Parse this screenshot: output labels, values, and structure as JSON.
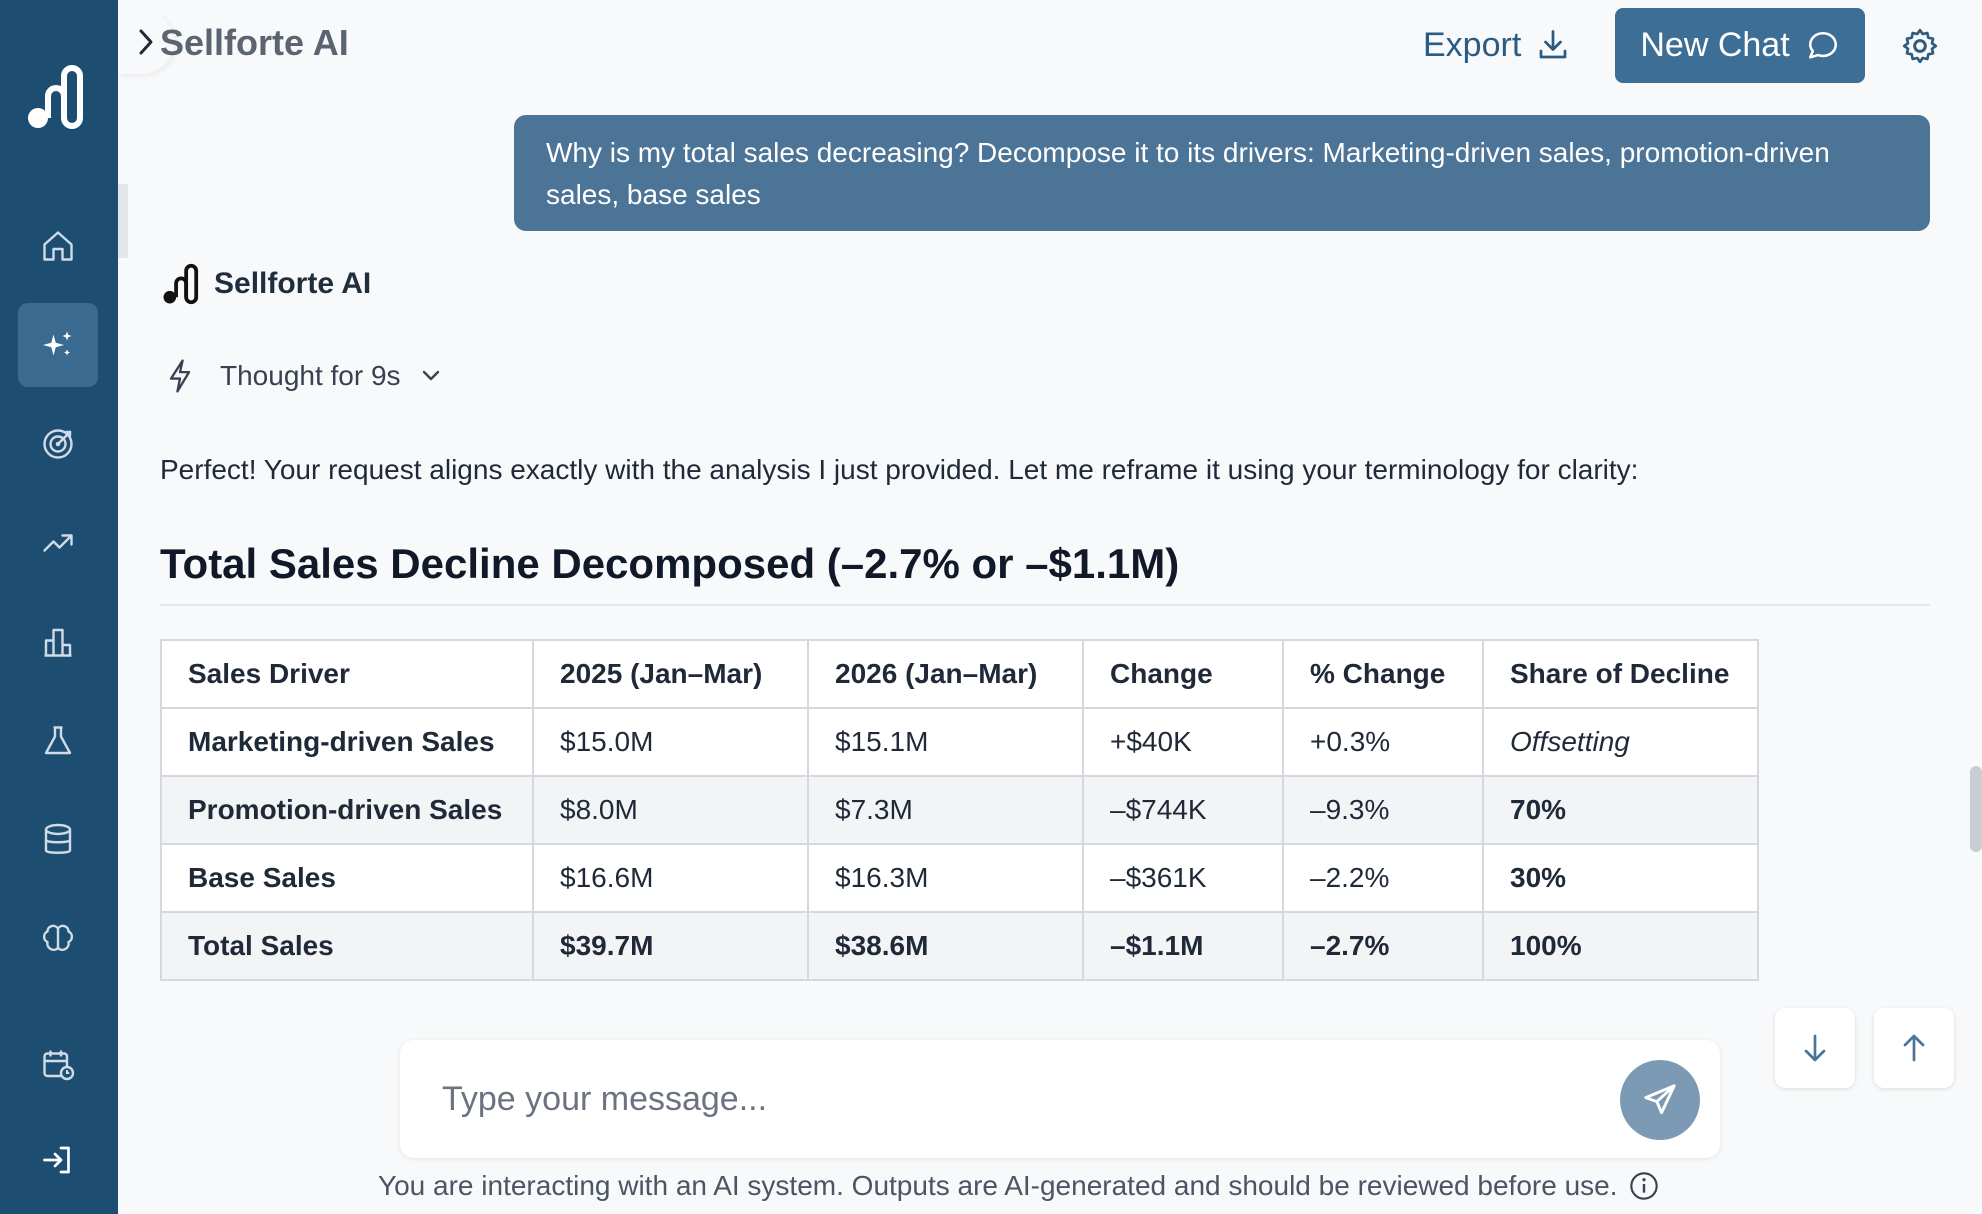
{
  "app": {
    "title": "Sellforte AI"
  },
  "header": {
    "export_label": "Export",
    "new_chat_label": "New Chat"
  },
  "sidebar": {
    "items": [
      {
        "icon": "home-icon"
      },
      {
        "icon": "sparkles-icon",
        "active": true
      },
      {
        "icon": "target-icon"
      },
      {
        "icon": "trend-up-icon"
      },
      {
        "icon": "bar-chart-icon"
      },
      {
        "icon": "flask-icon"
      },
      {
        "icon": "database-icon"
      },
      {
        "icon": "brain-icon"
      },
      {
        "icon": "calendar-clock-icon"
      },
      {
        "icon": "logout-icon"
      }
    ]
  },
  "conversation": {
    "user_message": "Why is my total sales decreasing? Decompose it to its drivers: Marketing-driven sales, promotion-driven sales, base sales",
    "assistant_name": "Sellforte AI",
    "thought_label": "Thought for 9s",
    "intro": "Perfect! Your request aligns exactly with the analysis I just provided. Let me reframe it using your terminology for clarity:",
    "section_title": "Total Sales Decline Decomposed (–2.7% or –$1.1M)",
    "table": {
      "headers": [
        "Sales Driver",
        "2025 (Jan–Mar)",
        "2026 (Jan–Mar)",
        "Change",
        "% Change",
        "Share of Decline"
      ],
      "rows": [
        [
          "Marketing-driven Sales",
          "$15.0M",
          "$15.1M",
          "+$40K",
          "+0.3%",
          "Offsetting"
        ],
        [
          "Promotion-driven Sales",
          "$8.0M",
          "$7.3M",
          "–$744K",
          "–9.3%",
          "70%"
        ],
        [
          "Base Sales",
          "$16.6M",
          "$16.3M",
          "–$361K",
          "–2.2%",
          "30%"
        ],
        [
          "Total Sales",
          "$39.7M",
          "$38.6M",
          "–$1.1M",
          "–2.7%",
          "100%"
        ]
      ]
    }
  },
  "composer": {
    "placeholder": "Type your message..."
  },
  "footer": {
    "disclaimer": "You are interacting with an AI system. Outputs are AI-generated and should be reviewed before use."
  },
  "colors": {
    "sidebar": "#1d4e72",
    "accent": "#3d6e95",
    "user_bubble": "#4c7496"
  }
}
